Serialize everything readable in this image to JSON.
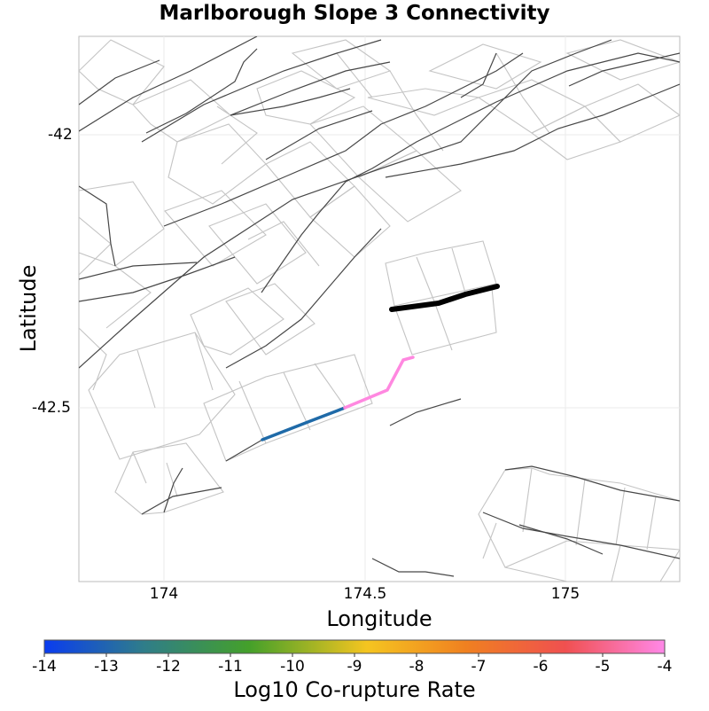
{
  "map": {
    "title": "Marlborough Slope 3 Connectivity",
    "x_axis": {
      "label": "Longitude",
      "range": [
        173.79,
        175.27
      ],
      "ticks": [
        "174",
        "174.5",
        "175"
      ]
    },
    "y_axis": {
      "label": "Latitude",
      "range": [
        -42.82,
        -41.82
      ],
      "ticks": [
        "-42",
        "-42.5"
      ]
    },
    "highlighted_section": {
      "name": "Marlborough Slope 3",
      "color": "#000000"
    },
    "corupture_sections": [
      {
        "rate_log10": -12.7,
        "color": "#1f6aa8"
      },
      {
        "rate_log10": -4.0,
        "color": "#ff88e0"
      }
    ]
  },
  "colorbar": {
    "label": "Log10 Co-rupture Rate",
    "min": -14,
    "max": -4,
    "ticks": [
      "-14",
      "-13",
      "-12",
      "-11",
      "-10",
      "-9",
      "-8",
      "-7",
      "-6",
      "-5",
      "-4"
    ],
    "colors": [
      "#0a3cf0",
      "#2f7d8a",
      "#44a02a",
      "#f5c520",
      "#f08020",
      "#f05050",
      "#ff88e8"
    ]
  }
}
